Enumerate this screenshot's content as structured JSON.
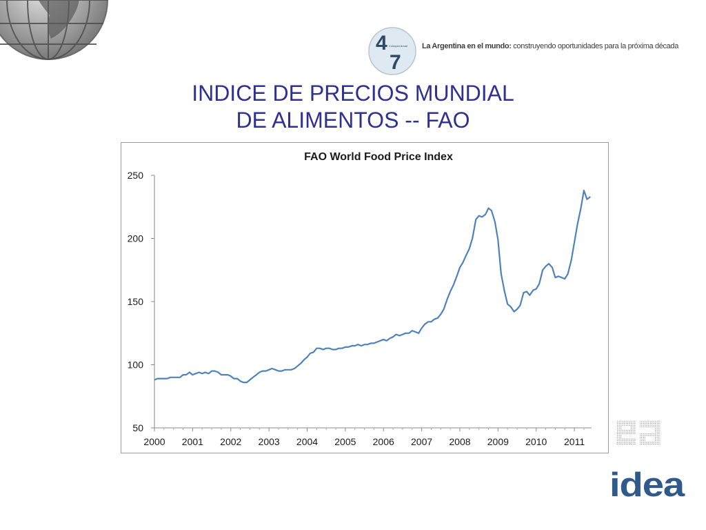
{
  "header": {
    "logo_text": "4",
    "logo_text_2": "7",
    "logo_small": "Coloquio Anual",
    "tagline_bold": "La Argentina en el mundo:",
    "tagline_rest": " construyendo oportunidades para la próxima década"
  },
  "slide": {
    "title_line1": "INDICE DE PRECIOS MUNDIAL",
    "title_line2": "DE ALIMENTOS -- FAO"
  },
  "footer": {
    "brand": "idea"
  },
  "colors": {
    "title": "#2e3192",
    "line": "#4f81bd",
    "brand": "#2f5a8a"
  },
  "chart_data": {
    "type": "line",
    "title": "FAO World Food Price Index",
    "xlabel": "",
    "ylabel": "",
    "xlim": [
      2000,
      2011.45
    ],
    "ylim": [
      50,
      250
    ],
    "yticks": [
      50,
      100,
      150,
      200,
      250
    ],
    "xticks": [
      2000,
      2001,
      2002,
      2003,
      2004,
      2005,
      2006,
      2007,
      2008,
      2009,
      2010,
      2011
    ],
    "grid": false,
    "series": [
      {
        "name": "",
        "x": [
          2000.0,
          2000.08,
          2000.17,
          2000.25,
          2000.33,
          2000.42,
          2000.5,
          2000.58,
          2000.67,
          2000.75,
          2000.83,
          2000.92,
          2001.0,
          2001.08,
          2001.17,
          2001.25,
          2001.33,
          2001.42,
          2001.5,
          2001.58,
          2001.67,
          2001.75,
          2001.83,
          2001.92,
          2002.0,
          2002.08,
          2002.17,
          2002.25,
          2002.33,
          2002.42,
          2002.5,
          2002.58,
          2002.67,
          2002.75,
          2002.83,
          2002.92,
          2003.0,
          2003.08,
          2003.17,
          2003.25,
          2003.33,
          2003.42,
          2003.5,
          2003.58,
          2003.67,
          2003.75,
          2003.83,
          2003.92,
          2004.0,
          2004.08,
          2004.17,
          2004.25,
          2004.33,
          2004.42,
          2004.5,
          2004.58,
          2004.67,
          2004.75,
          2004.83,
          2004.92,
          2005.0,
          2005.08,
          2005.17,
          2005.25,
          2005.33,
          2005.42,
          2005.5,
          2005.58,
          2005.67,
          2005.75,
          2005.83,
          2005.92,
          2006.0,
          2006.08,
          2006.17,
          2006.25,
          2006.33,
          2006.42,
          2006.5,
          2006.58,
          2006.67,
          2006.75,
          2006.83,
          2006.92,
          2007.0,
          2007.08,
          2007.17,
          2007.25,
          2007.33,
          2007.42,
          2007.5,
          2007.58,
          2007.67,
          2007.75,
          2007.83,
          2007.92,
          2008.0,
          2008.08,
          2008.17,
          2008.25,
          2008.33,
          2008.42,
          2008.5,
          2008.58,
          2008.67,
          2008.75,
          2008.83,
          2008.92,
          2009.0,
          2009.08,
          2009.17,
          2009.25,
          2009.33,
          2009.42,
          2009.5,
          2009.58,
          2009.67,
          2009.75,
          2009.83,
          2009.92,
          2010.0,
          2010.08,
          2010.17,
          2010.25,
          2010.33,
          2010.42,
          2010.5,
          2010.58,
          2010.67,
          2010.75,
          2010.83,
          2010.92,
          2011.0,
          2011.08,
          2011.17,
          2011.25,
          2011.33,
          2011.42
        ],
        "y": [
          88,
          89,
          89,
          89,
          89,
          90,
          90,
          90,
          90,
          92,
          92,
          94,
          92,
          93,
          94,
          93,
          94,
          93,
          95,
          95,
          94,
          92,
          92,
          92,
          91,
          89,
          89,
          87,
          86,
          86,
          88,
          90,
          92,
          94,
          95,
          95,
          96,
          97,
          96,
          95,
          95,
          96,
          96,
          96,
          97,
          99,
          101,
          104,
          106,
          109,
          110,
          113,
          113,
          112,
          113,
          113,
          112,
          112,
          113,
          113,
          114,
          114,
          115,
          115,
          116,
          115,
          116,
          116,
          117,
          117,
          118,
          119,
          120,
          119,
          121,
          122,
          124,
          123,
          124,
          125,
          125,
          127,
          126,
          125,
          129,
          132,
          134,
          134,
          136,
          137,
          140,
          144,
          152,
          158,
          163,
          170,
          177,
          181,
          187,
          192,
          200,
          215,
          218,
          217,
          219,
          224,
          222,
          213,
          199,
          172,
          158,
          148,
          146,
          142,
          144,
          147,
          157,
          158,
          155,
          159,
          160,
          164,
          175,
          178,
          180,
          177,
          169,
          170,
          169,
          168,
          172,
          183,
          197,
          211,
          224,
          238,
          231,
          233
        ]
      }
    ]
  }
}
